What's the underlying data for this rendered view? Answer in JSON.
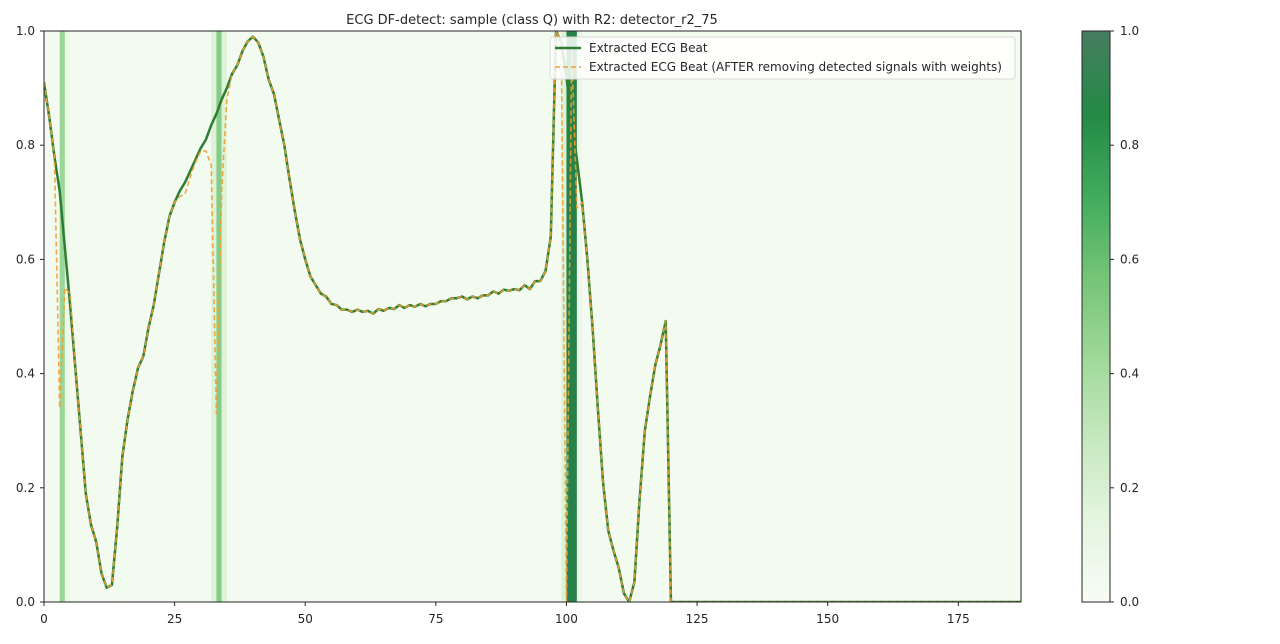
{
  "chart_data": {
    "type": "line",
    "title": "ECG DF-detect: sample (class Q) with R2: detector_r2_75",
    "xlabel": "",
    "ylabel": "",
    "xlim": [
      0,
      187
    ],
    "ylim": [
      0,
      1
    ],
    "x_ticks": [
      0,
      25,
      50,
      75,
      100,
      125,
      150,
      175
    ],
    "y_ticks": [
      0.0,
      0.2,
      0.4,
      0.6,
      0.8,
      1.0
    ],
    "grid": false,
    "legend_position": "upper right",
    "colors": {
      "original": "#2e7d32",
      "after": "#f0a030",
      "weight_colormap": [
        "#f7fcf5",
        "#e5f5e0",
        "#c7e9c0",
        "#a1d99b",
        "#74c476",
        "#41ab5d",
        "#238b45",
        "#006d2c"
      ]
    },
    "series": [
      {
        "name": "Extracted ECG Beat",
        "style": "solid",
        "y": [
          0.91,
          0.85,
          0.78,
          0.72,
          0.62,
          0.52,
          0.41,
          0.3,
          0.19,
          0.135,
          0.105,
          0.05,
          0.025,
          0.03,
          0.13,
          0.255,
          0.32,
          0.37,
          0.41,
          0.43,
          0.48,
          0.52,
          0.575,
          0.63,
          0.675,
          0.7,
          0.72,
          0.735,
          0.755,
          0.775,
          0.795,
          0.81,
          0.835,
          0.855,
          0.88,
          0.9,
          0.925,
          0.94,
          0.965,
          0.982,
          0.99,
          0.98,
          0.955,
          0.915,
          0.89,
          0.845,
          0.8,
          0.74,
          0.685,
          0.635,
          0.6,
          0.57,
          0.555,
          0.54,
          0.535,
          0.522,
          0.52,
          0.512,
          0.512,
          0.508,
          0.512,
          0.508,
          0.51,
          0.505,
          0.513,
          0.51,
          0.515,
          0.513,
          0.52,
          0.515,
          0.52,
          0.517,
          0.522,
          0.518,
          0.522,
          0.522,
          0.527,
          0.527,
          0.532,
          0.532,
          0.535,
          0.53,
          0.535,
          0.532,
          0.537,
          0.537,
          0.544,
          0.54,
          0.547,
          0.545,
          0.548,
          0.546,
          0.555,
          0.548,
          0.562,
          0.562,
          0.58,
          0.64,
          1.0,
          0.98,
          0.92,
          0.84,
          0.775,
          0.7,
          0.6,
          0.48,
          0.34,
          0.21,
          0.125,
          0.09,
          0.06,
          0.015,
          0.0,
          0.035,
          0.18,
          0.3,
          0.36,
          0.415,
          0.45,
          0.492,
          0.0,
          0.0,
          0.0,
          0.0,
          0.0,
          0.0,
          0.0,
          0.0,
          0.0,
          0.0,
          0.0,
          0.0,
          0.0,
          0.0,
          0.0,
          0.0,
          0.0,
          0.0,
          0.0,
          0.0,
          0.0,
          0.0,
          0.0,
          0.0,
          0.0,
          0.0,
          0.0,
          0.0,
          0.0,
          0.0,
          0.0,
          0.0,
          0.0,
          0.0,
          0.0,
          0.0,
          0.0,
          0.0,
          0.0,
          0.0,
          0.0,
          0.0,
          0.0,
          0.0,
          0.0,
          0.0,
          0.0,
          0.0,
          0.0,
          0.0,
          0.0,
          0.0,
          0.0,
          0.0,
          0.0,
          0.0,
          0.0,
          0.0,
          0.0,
          0.0,
          0.0,
          0.0,
          0.0,
          0.0,
          0.0,
          0.0,
          0.0,
          0.0
        ]
      },
      {
        "name": "Extracted ECG Beat (AFTER removing detected signals with weights)",
        "style": "dashed",
        "y": [
          0.91,
          0.85,
          0.78,
          0.34,
          0.55,
          0.54,
          0.41,
          0.3,
          0.19,
          0.135,
          0.105,
          0.05,
          0.025,
          0.03,
          0.13,
          0.255,
          0.32,
          0.37,
          0.41,
          0.43,
          0.48,
          0.52,
          0.575,
          0.63,
          0.675,
          0.7,
          0.71,
          0.715,
          0.745,
          0.77,
          0.79,
          0.79,
          0.765,
          0.33,
          0.72,
          0.88,
          0.925,
          0.94,
          0.965,
          0.982,
          0.99,
          0.98,
          0.955,
          0.915,
          0.89,
          0.845,
          0.8,
          0.74,
          0.685,
          0.635,
          0.6,
          0.57,
          0.555,
          0.54,
          0.535,
          0.522,
          0.52,
          0.512,
          0.512,
          0.508,
          0.512,
          0.508,
          0.51,
          0.505,
          0.513,
          0.51,
          0.515,
          0.513,
          0.52,
          0.515,
          0.52,
          0.517,
          0.522,
          0.518,
          0.522,
          0.522,
          0.527,
          0.527,
          0.532,
          0.532,
          0.535,
          0.53,
          0.535,
          0.532,
          0.537,
          0.537,
          0.544,
          0.54,
          0.547,
          0.545,
          0.548,
          0.546,
          0.555,
          0.548,
          0.562,
          0.562,
          0.58,
          0.64,
          1.0,
          0.98,
          0.0,
          0.97,
          0.69,
          0.7,
          0.6,
          0.48,
          0.34,
          0.21,
          0.125,
          0.09,
          0.06,
          0.015,
          0.0,
          0.035,
          0.18,
          0.3,
          0.36,
          0.415,
          0.45,
          0.492,
          0.0,
          0.0,
          0.0,
          0.0,
          0.0,
          0.0,
          0.0,
          0.0,
          0.0,
          0.0,
          0.0,
          0.0,
          0.0,
          0.0,
          0.0,
          0.0,
          0.0,
          0.0,
          0.0,
          0.0,
          0.0,
          0.0,
          0.0,
          0.0,
          0.0,
          0.0,
          0.0,
          0.0,
          0.0,
          0.0,
          0.0,
          0.0,
          0.0,
          0.0,
          0.0,
          0.0,
          0.0,
          0.0,
          0.0,
          0.0,
          0.0,
          0.0,
          0.0,
          0.0,
          0.0,
          0.0,
          0.0,
          0.0,
          0.0,
          0.0,
          0.0,
          0.0,
          0.0,
          0.0,
          0.0,
          0.0,
          0.0,
          0.0,
          0.0,
          0.0,
          0.0,
          0.0,
          0.0,
          0.0,
          0.0,
          0.0,
          0.0,
          0.0,
          0.0,
          0.0
        ]
      }
    ],
    "weights": {
      "default": 0.03,
      "segments": [
        {
          "start": 3,
          "end": 4,
          "value": 0.5
        },
        {
          "start": 4,
          "end": 5,
          "value": 0.1
        },
        {
          "start": 14,
          "end": 17,
          "value": 0.05
        },
        {
          "start": 26,
          "end": 32,
          "value": 0.05
        },
        {
          "start": 32,
          "end": 33,
          "value": 0.2
        },
        {
          "start": 33,
          "end": 34,
          "value": 0.58
        },
        {
          "start": 34,
          "end": 35,
          "value": 0.2
        },
        {
          "start": 99,
          "end": 100,
          "value": 0.2
        },
        {
          "start": 100,
          "end": 102,
          "value": 1.0
        },
        {
          "start": 102,
          "end": 103,
          "value": 0.1
        }
      ]
    },
    "colorbar": {
      "range": [
        0,
        1
      ],
      "ticks": [
        0.0,
        0.2,
        0.4,
        0.6,
        0.8,
        1.0
      ]
    }
  }
}
